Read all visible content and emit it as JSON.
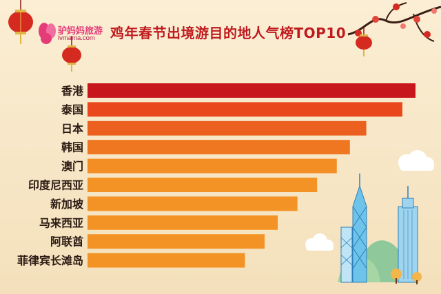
{
  "brand": {
    "name": "驴妈妈旅游",
    "url": "lvmama.com"
  },
  "title": "鸡年春节出境游目的地人气榜TOP10",
  "colors": {
    "background": "#f6e6c5",
    "bar_top": "#c8161d",
    "bar_mid": "#e8481c",
    "bar_low": "#f39325",
    "accent": "#c01b1b"
  },
  "chart_data": {
    "type": "bar",
    "orientation": "horizontal",
    "categories": [
      "香港",
      "泰国",
      "日本",
      "韩国",
      "澳门",
      "印度尼西亚",
      "新加坡",
      "马来西亚",
      "阿联酋",
      "菲律宾长滩岛"
    ],
    "values": [
      100,
      96,
      85,
      80,
      76,
      70,
      64,
      58,
      54,
      48
    ],
    "xlim": [
      0,
      100
    ],
    "xlabel": "",
    "ylabel": "",
    "grid": false,
    "legend": "none"
  }
}
